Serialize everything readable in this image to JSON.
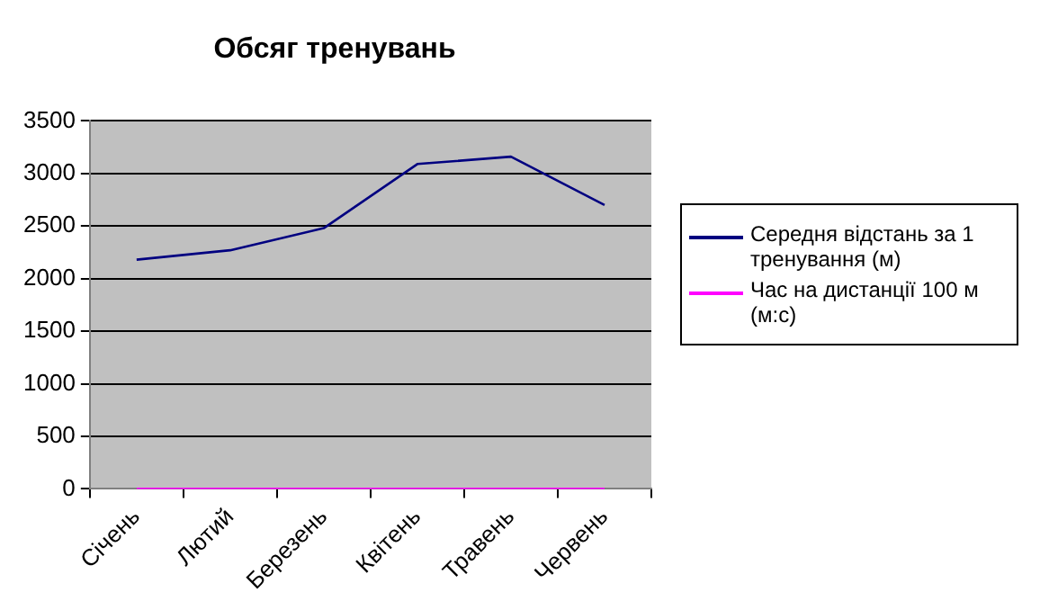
{
  "chart_data": {
    "type": "line",
    "title": "Обсяг тренувань",
    "categories": [
      "Січень",
      "Лютий",
      "Березень",
      "Квітень",
      "Травень",
      "Червень"
    ],
    "series": [
      {
        "name": "Середня відстань за 1 тренування (м)",
        "color": "#000080",
        "values": [
          2180,
          2270,
          2480,
          3090,
          3160,
          2700
        ]
      },
      {
        "name": "Час на дистанції 100 м (м:с)",
        "color": "#ff00ff",
        "values": [
          0,
          0,
          0,
          0,
          0,
          0
        ]
      }
    ],
    "ylim": [
      0,
      3500
    ],
    "yticks": [
      0,
      500,
      1000,
      1500,
      2000,
      2500,
      3000,
      3500
    ],
    "grid": "y",
    "legend": "right",
    "marker": "none"
  }
}
